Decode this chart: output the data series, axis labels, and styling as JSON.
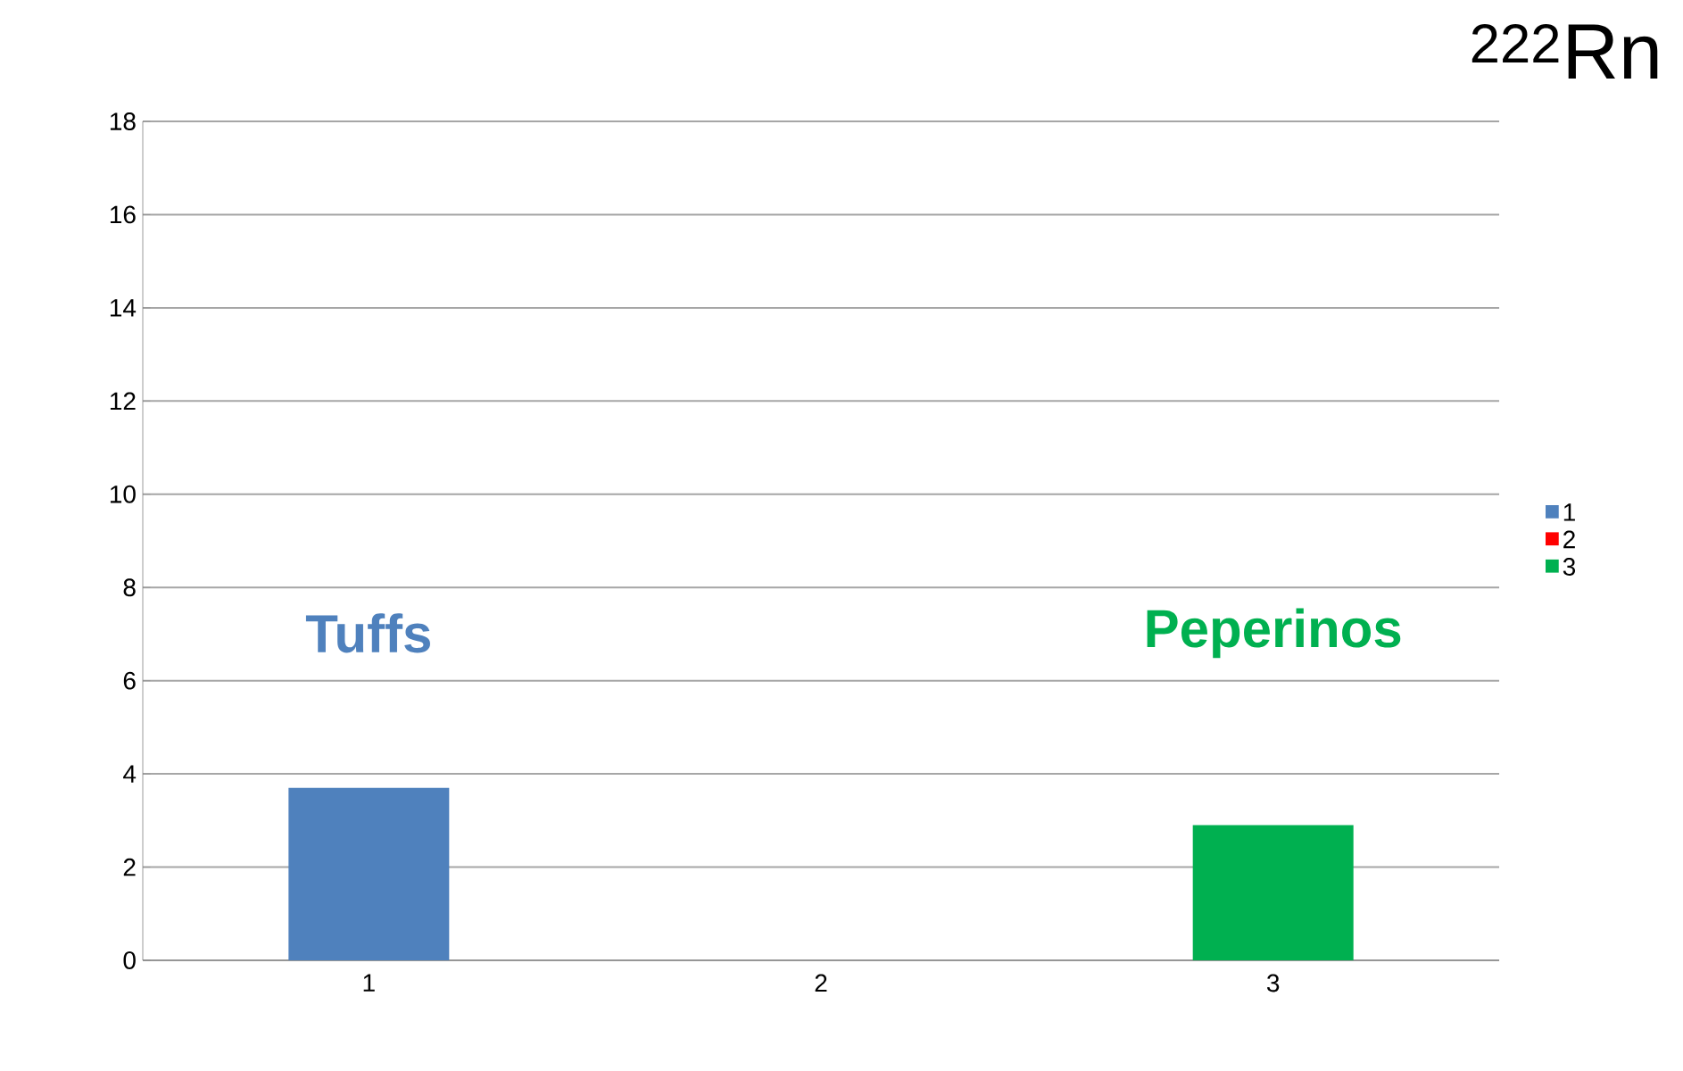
{
  "chart_data": {
    "type": "bar",
    "title": "$^{222}$Rn",
    "categories": [
      "1",
      "2",
      "3"
    ],
    "series": [
      {
        "name": "1",
        "color": "#4f81bd",
        "values": [
          3.7,
          null,
          null
        ]
      },
      {
        "name": "2",
        "color": "#ff0000",
        "values": [
          null,
          null,
          null
        ]
      },
      {
        "name": "3",
        "color": "#00b050",
        "values": [
          null,
          null,
          2.9
        ]
      }
    ],
    "ylim": [
      0,
      18
    ],
    "yticks": [
      0,
      2,
      4,
      6,
      8,
      10,
      12,
      14,
      16,
      18
    ],
    "grid": "y",
    "legend": "right",
    "annotations": [
      "Tuffs",
      "Peperinos"
    ]
  }
}
